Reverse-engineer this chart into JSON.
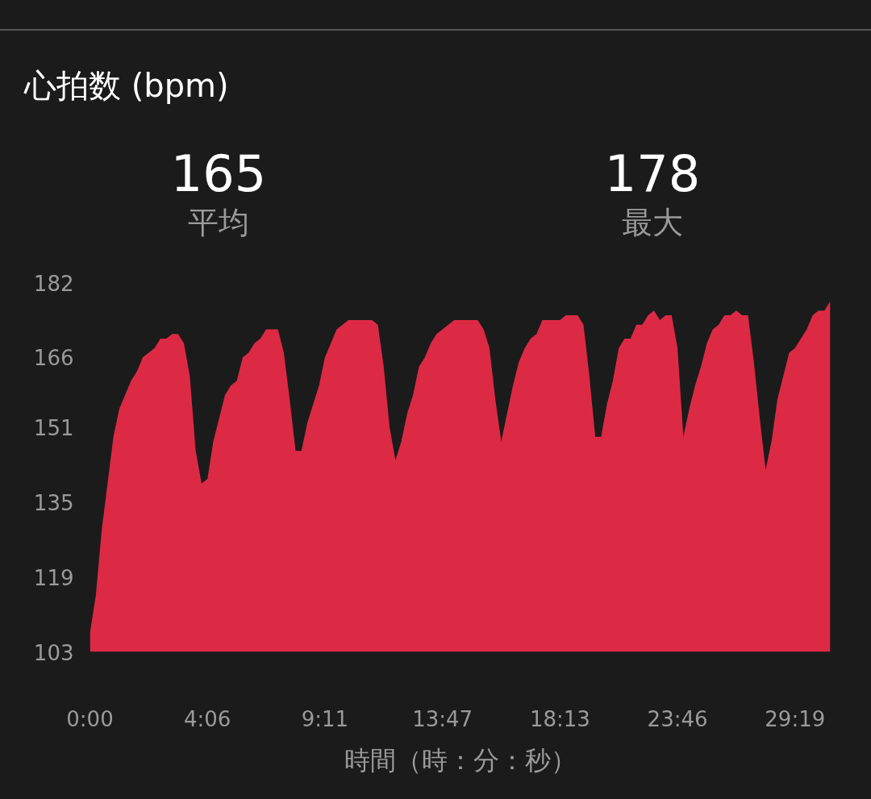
{
  "chart_data": {
    "type": "area",
    "title": "心拍数 (bpm)",
    "xlabel": "時間（時：分：秒）",
    "annotations": [
      "165",
      "平均",
      "178",
      "最大"
    ],
    "categories": [
      "0:00",
      null,
      null,
      null,
      null,
      null,
      null,
      null,
      null,
      null,
      null,
      null,
      null,
      null,
      null,
      null,
      null,
      null,
      null,
      null,
      "4:06",
      null,
      null,
      null,
      null,
      null,
      null,
      null,
      null,
      null,
      null,
      null,
      null,
      null,
      null,
      null,
      null,
      null,
      null,
      null,
      "9:11",
      null,
      null,
      null,
      null,
      null,
      null,
      null,
      null,
      null,
      null,
      null,
      null,
      null,
      null,
      null,
      null,
      null,
      null,
      null,
      "13:47",
      null,
      null,
      null,
      null,
      null,
      null,
      null,
      null,
      null,
      null,
      null,
      null,
      null,
      null,
      null,
      null,
      null,
      null,
      null,
      "18:13",
      null,
      null,
      null,
      null,
      null,
      null,
      null,
      null,
      null,
      null,
      null,
      null,
      null,
      null,
      null,
      null,
      null,
      null,
      null,
      "23:46",
      null,
      null,
      null,
      null,
      null,
      null,
      null,
      null,
      null,
      null,
      null,
      null,
      null,
      null,
      null,
      null,
      null,
      null,
      null,
      "29:19",
      null,
      null,
      null,
      null,
      null,
      null
    ],
    "series": [
      {
        "color": "#dc2a45",
        "values": [
          107,
          115,
          129,
          139,
          149,
          155,
          158,
          161,
          163,
          166,
          167,
          168,
          170,
          170,
          171,
          171,
          169,
          162,
          146,
          139,
          140,
          148,
          153,
          158,
          160,
          161,
          166,
          167,
          169,
          170,
          172,
          172,
          172,
          167,
          157,
          146,
          146,
          152,
          156,
          160,
          166,
          169,
          172,
          173,
          174,
          174,
          174,
          174,
          174,
          173,
          164,
          151,
          144,
          148,
          154,
          158,
          164,
          166,
          169,
          171,
          172,
          173,
          174,
          174,
          174,
          174,
          174,
          172,
          168,
          157,
          148,
          154,
          160,
          165,
          168,
          170,
          171,
          174,
          174,
          174,
          174,
          175,
          175,
          175,
          173,
          162,
          149,
          149,
          156,
          161,
          168,
          170,
          170,
          173,
          173,
          175,
          176,
          174,
          175,
          175,
          168,
          149,
          155,
          160,
          164,
          169,
          172,
          173,
          175,
          175,
          176,
          175,
          175,
          165,
          153,
          142,
          148,
          157,
          162,
          167,
          168,
          170,
          172,
          175,
          176,
          176,
          178
        ]
      }
    ],
    "ylim": [
      103,
      182
    ],
    "yticks": [
      103,
      119,
      135,
      151,
      166,
      182
    ]
  }
}
